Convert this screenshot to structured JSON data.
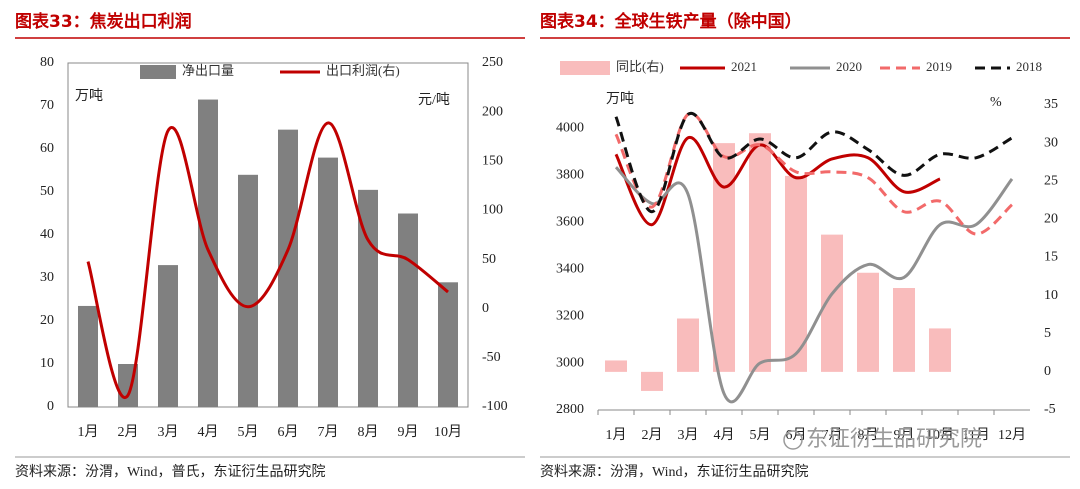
{
  "chart_data": [
    {
      "type": "bar_line",
      "title": "图表33：焦炭出口利润",
      "categories": [
        "1月",
        "2月",
        "3月",
        "4月",
        "5月",
        "6月",
        "7月",
        "8月",
        "9月",
        "10月"
      ],
      "series": [
        {
          "name": "净出口量",
          "type": "bar",
          "color": "#808080",
          "values": [
            23.5,
            10,
            33,
            71.5,
            54,
            64.5,
            58,
            50.5,
            45,
            29
          ]
        },
        {
          "name": "出口利润(右)",
          "type": "line",
          "axis": "y2",
          "color": "#c00000",
          "values": [
            48,
            -88,
            181,
            60,
            2,
            60,
            189,
            70,
            50,
            17
          ]
        }
      ],
      "ylabel": "万吨",
      "y2label": "元/吨",
      "ylim": [
        0,
        80
      ],
      "yticks": [
        0,
        10,
        20,
        30,
        40,
        50,
        60,
        70,
        80
      ],
      "y2lim": [
        -100,
        250
      ],
      "y2ticks": [
        -100,
        -50,
        0,
        50,
        100,
        150,
        200,
        250
      ],
      "legend": "top",
      "grid": false,
      "source": "资料来源：汾渭，Wind，普氏，东证衍生品研究院"
    },
    {
      "type": "bar_line",
      "title": "图表34：全球生铁产量（除中国）",
      "categories": [
        "1月",
        "2月",
        "3月",
        "4月",
        "5月",
        "6月",
        "7月",
        "8月",
        "9月",
        "10月",
        "11月",
        "12月"
      ],
      "series": [
        {
          "name": "同比(右)",
          "type": "bar",
          "axis": "y2",
          "color": "#f9bcbc",
          "values": [
            1.5,
            -2.5,
            7,
            30,
            31.3,
            25.7,
            18,
            13,
            11,
            5.7,
            null,
            null
          ]
        },
        {
          "name": "2021",
          "type": "line",
          "color": "#c00000",
          "values": [
            3890,
            3590,
            3960,
            3750,
            3930,
            3790,
            3870,
            3875,
            3730,
            3785,
            null,
            null
          ]
        },
        {
          "name": "2020",
          "type": "line",
          "color": "#909090",
          "values": [
            3835,
            3680,
            3720,
            2870,
            3000,
            3040,
            3295,
            3420,
            3365,
            3590,
            3590,
            3785
          ]
        },
        {
          "name": "2019",
          "type": "line",
          "dash": true,
          "color": "#f26a6a",
          "values": [
            3975,
            3665,
            4060,
            3880,
            3930,
            3815,
            3815,
            3790,
            3645,
            3690,
            3550,
            3675
          ]
        },
        {
          "name": "2018",
          "type": "line",
          "dash": true,
          "color": "#111111",
          "values": [
            4050,
            3645,
            4060,
            3875,
            3955,
            3875,
            3985,
            3910,
            3800,
            3890,
            3875,
            3960
          ]
        }
      ],
      "ylabel": "万吨",
      "y2label": "%",
      "ylim": [
        2800,
        4100
      ],
      "yticks": [
        2800,
        3000,
        3200,
        3400,
        3600,
        3800,
        4000
      ],
      "y2lim": [
        -5,
        35
      ],
      "y2ticks": [
        -5,
        0,
        5,
        10,
        15,
        20,
        25,
        30,
        35
      ],
      "legend": "top",
      "grid": false,
      "source": "资料来源：汾渭，Wind，东证衍生品研究院"
    }
  ],
  "watermark": "东证衍生品研究院"
}
